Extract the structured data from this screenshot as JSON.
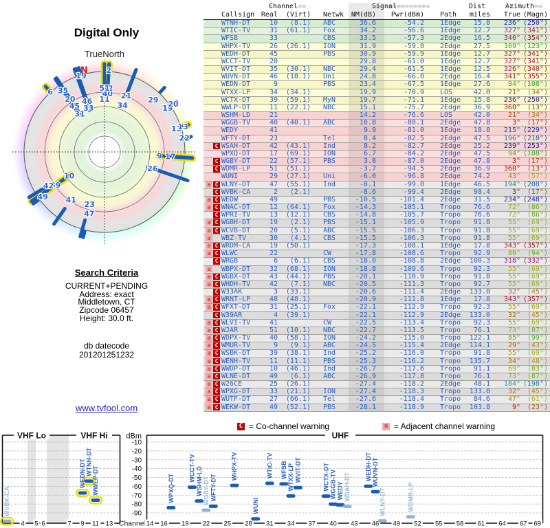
{
  "radar": {
    "title": "Digital Only",
    "north_label": "TrueNorth",
    "magnetic_north_label": "N"
  },
  "criteria": {
    "heading": "Search Criteria",
    "lines": [
      "CURRENT+PENDING",
      "Address: exact",
      "Middletown, CT",
      "Zipcode 06457",
      "Height: 30.0 ft."
    ],
    "db_label": "db datecode",
    "db_value": "201201251232"
  },
  "site_link": "www.tvfool.com",
  "legend": {
    "co_sym": "C",
    "co_text": "= Co-channel warning",
    "adj_sym": "a",
    "adj_text": "= Adjacent channel warning"
  },
  "charts": {
    "vhf_lo": "VHF Lo",
    "vhf_hi": "VHF Hi",
    "uhf": "UHF",
    "dbm_label": "dBm",
    "channel_label": "Channel",
    "dbm_ticks": [
      -10,
      -20,
      -30,
      -40,
      -50,
      -60,
      -70,
      -80,
      -90
    ],
    "vhf_ticks": [
      4,
      5,
      6,
      7,
      9,
      11,
      13
    ],
    "uhf_ticks": [
      14,
      16,
      19,
      22,
      25,
      28,
      31,
      34,
      37,
      40,
      43,
      46,
      49,
      52,
      55,
      58,
      61,
      64,
      67,
      69
    ]
  },
  "colors": {
    "text_blue": "#2a5cc8",
    "bar_blue": "#1a5cb4",
    "light_blue": "#8fb2dc",
    "highlight_yellow": "#f2dc00",
    "warn_red": "#c40000",
    "warn_pink": "#f4a9a9",
    "band_green": "#e3f2dc",
    "band_yellow": "#fdfdd8",
    "band_pink": "#fbdede",
    "band_gray": "#eaeaea"
  },
  "table": {
    "header": {
      "channel": "Channel",
      "signal": "Signal",
      "dist": "Dist",
      "azimuth": "Azimuth",
      "eq2": "==",
      "eq8": "========",
      "cols": [
        "Callsign",
        "Real",
        "(Virt)",
        "Netwk",
        "NM(dB)",
        "Pwr(dBm)",
        "Path",
        "miles",
        "True",
        "(Magn)"
      ]
    },
    "rows": [
      {
        "c": "WTNH-DT",
        "r": 10,
        "v": 8.1,
        "n": "ABC",
        "nm": 36.6,
        "pw": -54.2,
        "pa": "1Edge",
        "mi": 15.8,
        "t": 236,
        "m": 250,
        "b": "g",
        "w": "",
        "rr": 62,
        "ry": 1
      },
      {
        "c": "WTIC-TV",
        "r": 31,
        "v": 61.1,
        "n": "Fox",
        "nm": 34.2,
        "pw": -56.6,
        "pa": "1Edge",
        "mi": 12.7,
        "t": 327,
        "m": 341,
        "b": "g",
        "w": "",
        "rr": 66
      },
      {
        "c": "WFSB",
        "r": 33,
        "v": null,
        "n": "CBS",
        "nm": 33.5,
        "pw": -57.3,
        "pa": "2Edge",
        "mi": 16.5,
        "t": 340,
        "m": 354,
        "b": "g",
        "w": "",
        "rr": 68
      },
      {
        "c": "WHPX-TV",
        "r": 26,
        "v": 26.1,
        "n": "ION",
        "nm": 31.9,
        "pw": -59.0,
        "pa": "2Edge",
        "mi": 27.5,
        "t": 109,
        "m": 123,
        "b": "y",
        "w": "",
        "rr": 74
      },
      {
        "c": "WEDH-DT",
        "r": 45,
        "v": null,
        "n": "PBS",
        "nm": 30.9,
        "pw": -59.9,
        "pa": "1Edge",
        "mi": 12.7,
        "t": 327,
        "m": 341,
        "b": "y",
        "w": "",
        "rr": 80
      },
      {
        "c": "WCCT-TV",
        "r": 20,
        "v": null,
        "n": "",
        "nm": 29.8,
        "pw": -61.0,
        "pa": "1Edge",
        "mi": 12.7,
        "t": 327,
        "m": 341,
        "b": "y",
        "w": "",
        "rr": 92
      },
      {
        "c": "WVIT-DT",
        "r": 35,
        "v": 30.1,
        "n": "NBC",
        "nm": 29.4,
        "pw": -61.5,
        "pa": "1Edge",
        "mi": 12.5,
        "t": 326,
        "m": 340,
        "b": "y",
        "w": "",
        "rr": 108
      },
      {
        "c": "WUVN-DT",
        "r": 46,
        "v": 18.1,
        "n": "Uni",
        "nm": 24.8,
        "pw": -66.0,
        "pa": "2Edge",
        "mi": 16.4,
        "t": 341,
        "m": 355,
        "b": "y",
        "w": "",
        "rr": 78
      },
      {
        "c": "WEDN-DT",
        "r": 9,
        "v": null,
        "n": "PBS",
        "nm": 23.4,
        "pw": -67.5,
        "pa": "1Edge",
        "mi": 27.6,
        "t": 94,
        "m": 108,
        "b": "y",
        "w": "",
        "rr": 80,
        "ry": 1
      },
      {
        "c": "WTXX-LP",
        "r": 34,
        "v": 34.1,
        "n": "",
        "nm": 19.9,
        "pw": -70.9,
        "pa": "LOS",
        "mi": 42.0,
        "t": 21,
        "m": 34,
        "b": "y",
        "w": "",
        "rr": 73
      },
      {
        "c": "WCTX-DT",
        "r": 39,
        "v": 59.1,
        "n": "MyN",
        "nm": 19.7,
        "pw": -71.1,
        "pa": "1Edge",
        "mi": 15.8,
        "t": 236,
        "m": 250,
        "b": "y",
        "w": "",
        "rr": 86
      },
      {
        "c": "WWLP-DT",
        "r": 11,
        "v": 22.1,
        "n": "NBC",
        "nm": 15.1,
        "pw": -75.7,
        "pa": "2Edge",
        "mi": 36.9,
        "t": 360,
        "m": 13,
        "b": "y",
        "w": "",
        "rr": 77,
        "ry": 1
      },
      {
        "c": "WSHM-LD",
        "r": 21,
        "v": null,
        "n": "",
        "nm": 14.2,
        "pw": -76.6,
        "pa": "LOS",
        "mi": 42.0,
        "t": 21,
        "m": 34,
        "b": "p",
        "w": "",
        "rr": 88
      },
      {
        "c": "WGGB-TV",
        "r": 40,
        "v": 40.1,
        "n": "ABC",
        "nm": 10.8,
        "pw": -80.1,
        "pa": "2Edge",
        "mi": 47.8,
        "t": 3,
        "m": 17,
        "b": "p",
        "w": "",
        "rr": 85
      },
      {
        "c": "WEDY",
        "r": 41,
        "v": null,
        "n": "",
        "nm": 9.9,
        "pw": -81.0,
        "pa": "1Edge",
        "mi": 18.8,
        "t": 215,
        "m": 229,
        "b": "p",
        "w": "",
        "rr": 85
      },
      {
        "c": "WFTY-DT",
        "r": 23,
        "v": null,
        "n": "Tel",
        "nm": 8.4,
        "pw": -82.5,
        "pa": "2Edge",
        "mi": 47.5,
        "t": 196,
        "m": 210,
        "b": "p",
        "w": "",
        "rr": 79
      },
      {
        "c": "WSAH-DT",
        "r": 42,
        "v": 43.1,
        "n": "Ind",
        "nm": 8.2,
        "pw": -82.7,
        "pa": "2Edge",
        "mi": 25.2,
        "t": 239,
        "m": 253,
        "b": "p",
        "w": "C",
        "rr": 95
      },
      {
        "c": "WPXQ-DT",
        "r": 17,
        "v": 69.1,
        "n": "ION",
        "nm": 6.7,
        "pw": -84.2,
        "pa": "2Edge",
        "mi": 47.5,
        "t": 94,
        "m": 108,
        "b": "p",
        "w": "",
        "rr": 96
      },
      {
        "c": "WGBY-DT",
        "r": 22,
        "v": 57.1,
        "n": "PBS",
        "nm": 3.8,
        "pw": -87.0,
        "pa": "2Edge",
        "mi": 47.8,
        "t": 3,
        "m": 17,
        "b": "p",
        "w": "C",
        "rr": 93
      },
      {
        "c": "WDMR-LP",
        "r": 51,
        "v": 51.1,
        "n": "",
        "nm": -3.7,
        "pw": -94.5,
        "pa": "2Edge",
        "mi": 36.9,
        "t": 360,
        "m": 13,
        "b": "p",
        "w": "C",
        "rr": 93
      },
      {
        "c": "WUNI",
        "r": 29,
        "v": 27.1,
        "n": "Uni",
        "nm": -6.0,
        "pw": -96.8,
        "pa": "2Edge",
        "mi": 74.2,
        "t": 43,
        "m": 57,
        "b": "p",
        "w": "",
        "rr": 104
      },
      {
        "c": "WLNY-DT",
        "r": 47,
        "v": 55.1,
        "n": "Ind",
        "nm": -8.1,
        "pw": -99.0,
        "pa": "1Edge",
        "mi": 46.5,
        "t": 194,
        "m": 208,
        "b": "x",
        "w": "aC",
        "rr": 92
      },
      {
        "c": "WVBK-CA",
        "r": 2,
        "v": 2.1,
        "n": "",
        "nm": -8.6,
        "pw": -99.4,
        "pa": "2Edge",
        "mi": 98.4,
        "t": 3,
        "m": 17,
        "b": "x",
        "w": "C",
        "rr": 119,
        "ry": 1
      },
      {
        "c": "WEDW",
        "r": 49,
        "v": null,
        "n": "PBS",
        "nm": -10.5,
        "pw": -101.4,
        "pa": "2Edge",
        "mi": 31.5,
        "t": 234,
        "m": 248,
        "b": "x",
        "w": "aC",
        "rr": 111
      },
      {
        "c": "WNAC-DT",
        "r": 12,
        "v": 64.1,
        "n": "Fox",
        "nm": -14.3,
        "pw": -105.1,
        "pa": "Tropo",
        "mi": 76.6,
        "t": 72,
        "m": 86,
        "b": "x",
        "w": "aC",
        "rr": 110,
        "ry": 1
      },
      {
        "c": "WPRI-TV",
        "r": 13,
        "v": 12.1,
        "n": "CBS",
        "nm": -14.8,
        "pw": -105.7,
        "pa": "Tropo",
        "mi": 76.6,
        "t": 72,
        "m": 86,
        "b": "x",
        "w": "C",
        "rr": 120,
        "ry": 1
      },
      {
        "c": "WGBH-DT",
        "r": 19,
        "v": 2.1,
        "n": "PBS",
        "nm": -15.1,
        "pw": -105.9,
        "pa": "Tropo",
        "mi": 91.8,
        "t": 55,
        "m": 69,
        "b": "x",
        "w": "aC",
        "rr": 112
      },
      {
        "c": "WCVB-DT",
        "r": 20,
        "v": 5.1,
        "n": "ABC",
        "nm": -15.5,
        "pw": -106.3,
        "pa": "Tropo",
        "mi": 91.8,
        "t": 55,
        "m": 69,
        "b": "x",
        "w": "aC",
        "rr": 122
      },
      {
        "c": "WBZ-TV",
        "r": 30,
        "v": 4.1,
        "n": "CBS",
        "nm": -15.5,
        "pw": -106.3,
        "pa": "Tropo",
        "mi": 91.8,
        "t": 55,
        "m": 69,
        "b": "x",
        "w": "a"
      },
      {
        "c": "WRDM-CA",
        "r": 19,
        "v": 50.1,
        "n": "",
        "nm": -17.3,
        "pw": -108.1,
        "pa": "1Edge",
        "mi": 17.8,
        "t": 343,
        "m": 357,
        "b": "x",
        "w": "aC",
        "rr": 116
      },
      {
        "c": "WLWC",
        "r": 22,
        "v": null,
        "n": "CW",
        "nm": -17.8,
        "pw": -108.6,
        "pa": "Tropo",
        "mi": 92.9,
        "t": 80,
        "m": 94,
        "b": "x",
        "w": "aC",
        "rr": 118
      },
      {
        "c": "WRGB",
        "r": 6,
        "v": 6.1,
        "n": "CBS",
        "nm": -18.0,
        "pw": -108.8,
        "pa": "2Edge",
        "mi": 100.3,
        "t": 318,
        "m": 332,
        "b": "x",
        "w": "C",
        "rr": 118,
        "ry": 1
      },
      {
        "c": "WBPX-DT",
        "r": 32,
        "v": 68.1,
        "n": "ION",
        "nm": -18.8,
        "pw": -109.6,
        "pa": "Tropo",
        "mi": 92.3,
        "t": 55,
        "m": 69,
        "b": "x",
        "w": "a"
      },
      {
        "c": "WGBX-DT",
        "r": 43,
        "v": 44.1,
        "n": "PBS",
        "nm": -20.1,
        "pw": -110.9,
        "pa": "Tropo",
        "mi": 91.8,
        "t": 55,
        "m": 69,
        "b": "x",
        "w": "aC"
      },
      {
        "c": "WHDH-TV",
        "r": 42,
        "v": 7.1,
        "n": "NBC",
        "nm": -20.5,
        "pw": -111.3,
        "pa": "Tropo",
        "mi": 92.7,
        "t": 55,
        "m": 69,
        "b": "x",
        "w": "aC"
      },
      {
        "c": "W33AK",
        "r": 3,
        "v": 33.1,
        "n": "",
        "nm": -20.6,
        "pw": -111.4,
        "pa": "2Edge",
        "mi": 133.0,
        "t": 32,
        "m": 45,
        "b": "x",
        "w": "C"
      },
      {
        "c": "WRNT-LP",
        "r": 48,
        "v": 48.1,
        "n": "",
        "nm": -20.9,
        "pw": -111.8,
        "pa": "1Edge",
        "mi": 17.8,
        "t": 343,
        "m": 357,
        "b": "x",
        "w": "aC"
      },
      {
        "c": "WFXT-DT",
        "r": 31,
        "v": 25.1,
        "n": "Fox",
        "nm": -22.1,
        "pw": -112.9,
        "pa": "Tropo",
        "mi": 92.3,
        "t": 55,
        "m": 69,
        "b": "x",
        "w": "aC"
      },
      {
        "c": "W39AR",
        "r": 4,
        "v": 39.1,
        "n": "",
        "nm": -22.1,
        "pw": -112.9,
        "pa": "2Edge",
        "mi": 133.0,
        "t": 32,
        "m": 45,
        "b": "x",
        "w": "C"
      },
      {
        "c": "WLVI-TV",
        "r": 41,
        "v": null,
        "n": "CW",
        "nm": -22.5,
        "pw": -113.4,
        "pa": "Tropo",
        "mi": 92.3,
        "t": 55,
        "m": 69,
        "b": "x",
        "w": "aC"
      },
      {
        "c": "WJAR",
        "r": 51,
        "v": 10.1,
        "n": "NBC",
        "nm": -22.7,
        "pw": -113.5,
        "pa": "Tropo",
        "mi": 76.1,
        "t": 73,
        "m": 87,
        "b": "x",
        "w": "aC"
      },
      {
        "c": "WDPX-TV",
        "r": 40,
        "v": 58.1,
        "n": "ION",
        "nm": -24.2,
        "pw": -115.0,
        "pa": "Tropo",
        "mi": 122.1,
        "t": 85,
        "m": 99,
        "b": "x",
        "w": "aC"
      },
      {
        "c": "WMUR-TV",
        "r": 9,
        "v": 9.1,
        "n": "ABC",
        "nm": -24.5,
        "pw": -115.4,
        "pa": "2Edge",
        "mi": 114.1,
        "t": 29,
        "m": 43,
        "b": "x",
        "w": "aC"
      },
      {
        "c": "WSBK-DT",
        "r": 39,
        "v": 38.1,
        "n": "Ind",
        "nm": -25.2,
        "pw": -116.0,
        "pa": "Tropo",
        "mi": 91.8,
        "t": 55,
        "m": 69,
        "b": "x",
        "w": "aC"
      },
      {
        "c": "WENH-TV",
        "r": 11,
        "v": 11.1,
        "n": "PBS",
        "nm": -25.3,
        "pw": -116.2,
        "pa": "Tropo",
        "mi": 135.7,
        "t": 34,
        "m": 48,
        "b": "x",
        "w": "aC"
      },
      {
        "c": "WWDP-DT",
        "r": 10,
        "v": 46.1,
        "n": "Ind",
        "nm": -26.7,
        "pw": -117.6,
        "pa": "Tropo",
        "mi": 91.1,
        "t": 69,
        "m": 83,
        "b": "x",
        "w": "aC"
      },
      {
        "c": "WLNE-DT",
        "r": 49,
        "v": 6.1,
        "n": "ABC",
        "nm": -26.9,
        "pw": -117.8,
        "pa": "Tropo",
        "mi": 76.1,
        "t": 73,
        "m": 87,
        "b": "x",
        "w": "aC"
      },
      {
        "c": "W26CE",
        "r": 25,
        "v": 26.1,
        "n": "",
        "nm": -27.4,
        "pw": -118.2,
        "pa": "2Edge",
        "mi": 48.1,
        "t": 184,
        "m": 198,
        "b": "x",
        "w": "aC"
      },
      {
        "c": "WPXG-DT",
        "r": 33,
        "v": 21.1,
        "n": "ION",
        "nm": -27.4,
        "pw": -118.3,
        "pa": "Tropo",
        "mi": 133.0,
        "t": 32,
        "m": 45,
        "b": "x",
        "w": "aC"
      },
      {
        "c": "WUTF-DT",
        "r": 27,
        "v": 66.1,
        "n": "Tel",
        "nm": -27.6,
        "pw": -118.4,
        "pa": "Tropo",
        "mi": 84.6,
        "t": 47,
        "m": 61,
        "b": "x",
        "w": "aC"
      },
      {
        "c": "WEKW-DT",
        "r": 49,
        "v": 52.1,
        "n": "PBS",
        "nm": -28.1,
        "pw": -118.9,
        "pa": "Tropo",
        "mi": 103.8,
        "t": 9,
        "m": 23,
        "b": "x",
        "w": "aC"
      }
    ]
  }
}
